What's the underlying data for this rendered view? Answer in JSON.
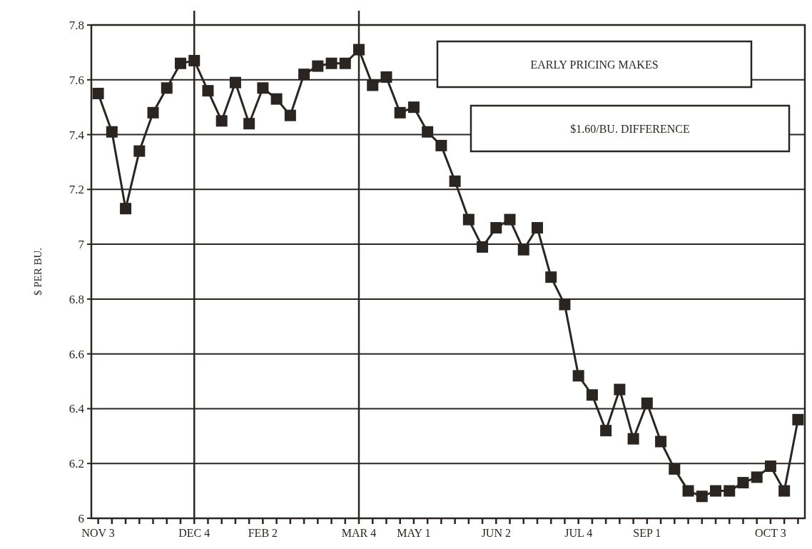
{
  "chart_data": {
    "type": "line",
    "ylabel": "$ PER BU.",
    "categories": [
      "NOV 3",
      null,
      null,
      null,
      null,
      null,
      null,
      "DEC 4",
      null,
      null,
      null,
      null,
      "FEB 2",
      null,
      null,
      null,
      null,
      null,
      null,
      "MAR 4",
      null,
      null,
      null,
      "MAY 1",
      null,
      null,
      null,
      null,
      null,
      "JUN 2",
      null,
      null,
      null,
      null,
      null,
      "JUL 4",
      null,
      null,
      null,
      null,
      "SEP 1",
      null,
      null,
      null,
      null,
      null,
      null,
      null,
      null,
      "OCT 3",
      null,
      null
    ],
    "series": [
      {
        "color": "#2b2522",
        "values": [
          7.55,
          7.41,
          7.13,
          7.34,
          7.48,
          7.57,
          7.66,
          7.67,
          7.56,
          7.45,
          7.59,
          7.44,
          7.57,
          7.53,
          7.47,
          7.62,
          7.65,
          7.66,
          7.66,
          7.71,
          7.58,
          7.61,
          7.48,
          7.5,
          7.41,
          7.36,
          7.23,
          7.09,
          6.99,
          7.06,
          7.09,
          6.98,
          7.06,
          6.88,
          6.78,
          6.52,
          6.45,
          6.32,
          6.47,
          6.29,
          6.42,
          6.28,
          6.18,
          6.1,
          6.08,
          6.1,
          6.1,
          6.13,
          6.15,
          6.19,
          6.1,
          6.36
        ]
      }
    ],
    "ylim": [
      6,
      7.8
    ],
    "yticks": [
      6,
      6.2,
      6.4,
      6.6,
      6.8,
      7,
      7.2,
      7.4,
      7.6,
      7.8
    ],
    "grid": "y",
    "marker": "square",
    "line_style": "solid",
    "ref_lines": [
      {
        "axis": "x",
        "value": "DEC 4",
        "label": null,
        "color": "#2b2522"
      },
      {
        "axis": "x",
        "value": "MAR 4",
        "label": null,
        "color": "#2b2522"
      }
    ],
    "annotations": [
      "EARLY PRICING MAKES",
      "$1.60/BU. DIFFERENCE"
    ]
  }
}
